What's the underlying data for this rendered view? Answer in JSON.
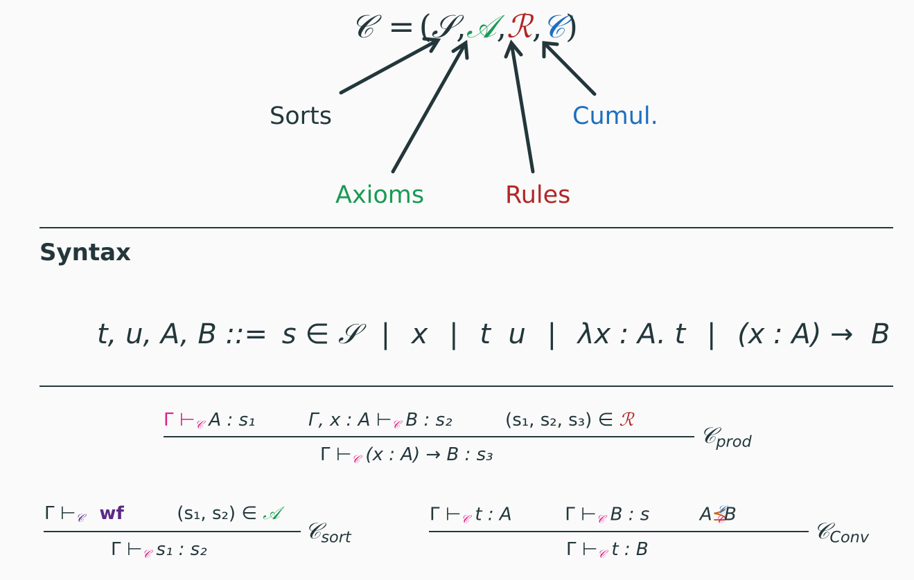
{
  "formula": {
    "lhs": "𝒞",
    "eq": "=",
    "open": "(",
    "S": "𝒮",
    "A": "𝒜",
    "R": "ℛ",
    "C": "𝒞",
    "close": ")",
    "comma": ","
  },
  "labels": {
    "sorts": "Sorts",
    "axioms": "Axioms",
    "rules": "Rules",
    "cumul": "Cumul."
  },
  "section": {
    "title": "Syntax"
  },
  "grammar": {
    "lhs": "t, u, A, B ::=",
    "alt1": "s ∈ 𝒮",
    "alt2": "x",
    "alt3": "t  u",
    "alt4": "λx : A. t",
    "alt5": "(x : A) →  B",
    "sep": "|"
  },
  "rules": {
    "prod": {
      "premise1": "Γ ⊢",
      "premise1_rest": "A : s₁",
      "premise2": "Γ, x : A ⊢",
      "premise2_rest": "B : s₂",
      "premise3": "(s₁, s₂, s₃) ∈",
      "premise3_set": "ℛ",
      "conclusion": "Γ ⊢",
      "conclusion_rest": "(x : A) →  B : s₃",
      "name_base": "𝒞",
      "name_sub": "prod"
    },
    "sort": {
      "premise1": "Γ ⊢",
      "premise1_wf": "wf",
      "premise2": "(s₁, s₂) ∈",
      "premise2_set": "𝒜",
      "conclusion": "Γ ⊢",
      "conclusion_rest": "s₁ : s₂",
      "name_base": "𝒞",
      "name_sub": "sort"
    },
    "conv": {
      "premise1": "Γ ⊢",
      "premise1_rest": "t : A",
      "premise2": "Γ ⊢",
      "premise2_rest": "B : s",
      "premise3_a": "A",
      "premise3_rel": "⪯",
      "premise3_sup": "𝒞",
      "premise3_b": "B",
      "conclusion": "Γ ⊢",
      "conclusion_rest": "t : B",
      "name_base": "𝒞",
      "name_sub": "Conv"
    },
    "turnstile_sub": "𝒞"
  },
  "colors": {
    "text": "#23373b",
    "axioms": "#1a9a54",
    "rules": "#b32626",
    "cumul": "#1d6fbf",
    "turnstile": "#e0208a",
    "wf": "#5b2a86",
    "conv": "#c8661a"
  }
}
